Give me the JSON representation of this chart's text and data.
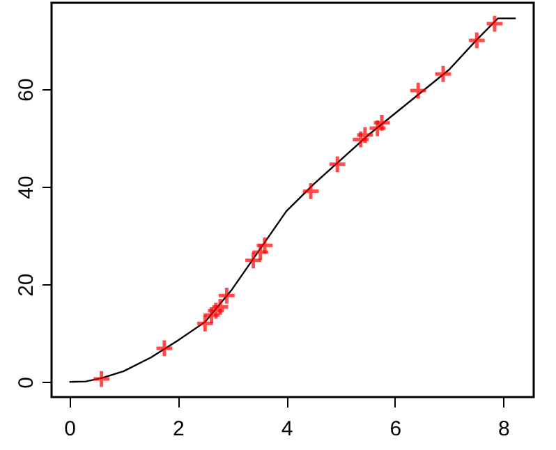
{
  "chart_data": {
    "type": "scatter",
    "xlim": [
      -0.33,
      8.56
    ],
    "ylim": [
      -3.1,
      77.7
    ],
    "xticks": [
      0,
      2,
      4,
      6,
      8
    ],
    "yticks": [
      0,
      20,
      40,
      60
    ],
    "grid": false,
    "series": [
      {
        "type": "line",
        "color": "#000000",
        "marker": "none",
        "x": [
          0,
          0.3,
          0.6,
          1,
          1.5,
          2,
          2.5,
          3,
          3.5,
          4,
          4.5,
          5,
          5.5,
          6,
          6.5,
          7,
          7.5,
          7.9,
          8.23
        ],
        "values": [
          0,
          0.1,
          0.8,
          2.2,
          5,
          8.5,
          12.3,
          19,
          27,
          35,
          40.5,
          45.5,
          50.5,
          55,
          59.5,
          64,
          70,
          74.5,
          74.5
        ]
      },
      {
        "color": "#ff0000",
        "marker": "cross",
        "x": [
          0.59,
          1.75,
          2.5,
          2.62,
          2.7,
          2.78,
          2.9,
          3.39,
          3.52,
          3.6,
          4.45,
          4.94,
          5.37,
          5.45,
          5.68,
          5.76,
          6.43,
          6.89,
          7.51,
          7.84
        ],
        "values": [
          0.6,
          6.9,
          12,
          13.7,
          14.6,
          15.4,
          17.7,
          24.9,
          26.6,
          28,
          39.1,
          44.6,
          49.7,
          50.6,
          52,
          53.1,
          59.7,
          63.1,
          70,
          73.4
        ]
      }
    ]
  }
}
